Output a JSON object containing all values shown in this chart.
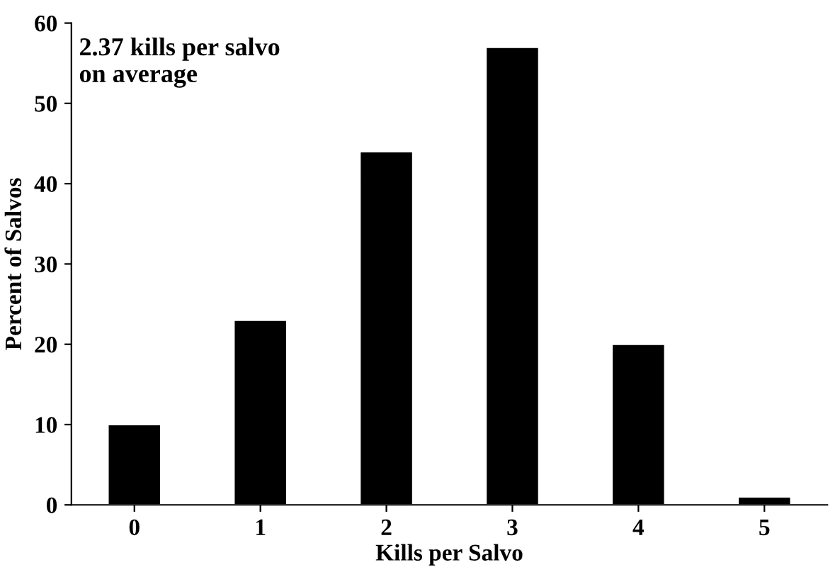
{
  "chart_data": {
    "type": "bar",
    "xlabel": "Kills per Salvo",
    "ylabel": "Percent of Salvos",
    "categories": [
      "0",
      "1",
      "2",
      "3",
      "4",
      "5"
    ],
    "values": [
      10,
      23,
      44,
      57,
      20,
      1
    ],
    "color": "#000000",
    "ylim": [
      0,
      60
    ],
    "yticks": [
      0,
      10,
      20,
      30,
      40,
      50,
      60
    ],
    "grid": false,
    "annotations": [
      "2.37 kills per salvo\non average"
    ]
  }
}
